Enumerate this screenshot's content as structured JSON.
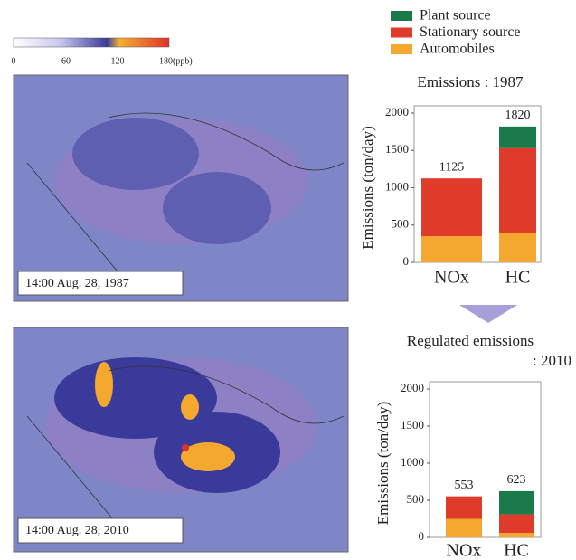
{
  "colorbar": {
    "labels": [
      "0",
      "60",
      "120",
      "180(ppb)"
    ]
  },
  "maps": [
    {
      "label": "14:00 Aug. 28, 1987"
    },
    {
      "label": "14:00 Aug. 28, 2010"
    }
  ],
  "chart_data": [
    {
      "type": "bar",
      "stacked": true,
      "title": "Emissions : 1987",
      "y_label": "Emissions (ton/day)",
      "categories": [
        "NOx",
        "HC"
      ],
      "series": [
        {
          "name": "Automobiles",
          "color": "#f5a830",
          "values": [
            350,
            400
          ]
        },
        {
          "name": "Stationary source",
          "color": "#e03a2a",
          "values": [
            775,
            1130
          ]
        },
        {
          "name": "Plant  source",
          "color": "#1a7a4a",
          "values": [
            0,
            290
          ]
        }
      ],
      "totals": [
        1125,
        1820
      ],
      "ylim": [
        0,
        2000
      ],
      "yticks": [
        0,
        500,
        1000,
        1500,
        2000
      ]
    },
    {
      "type": "bar",
      "stacked": true,
      "title": "Regulated emissions",
      "subtitle": ": 2010",
      "y_label": "Emissions (ton/day)",
      "categories": [
        "NOx",
        "HC"
      ],
      "series": [
        {
          "color": "#f5a830",
          "values": [
            250,
            60
          ]
        },
        {
          "color": "#e03a2a",
          "values": [
            303,
            250
          ]
        },
        {
          "color": "#1a7a4a",
          "values": [
            0,
            313
          ]
        }
      ],
      "totals": [
        553,
        623
      ],
      "ylim": [
        0,
        2000
      ],
      "yticks": [
        0,
        500,
        1000,
        1500,
        2000
      ]
    }
  ]
}
